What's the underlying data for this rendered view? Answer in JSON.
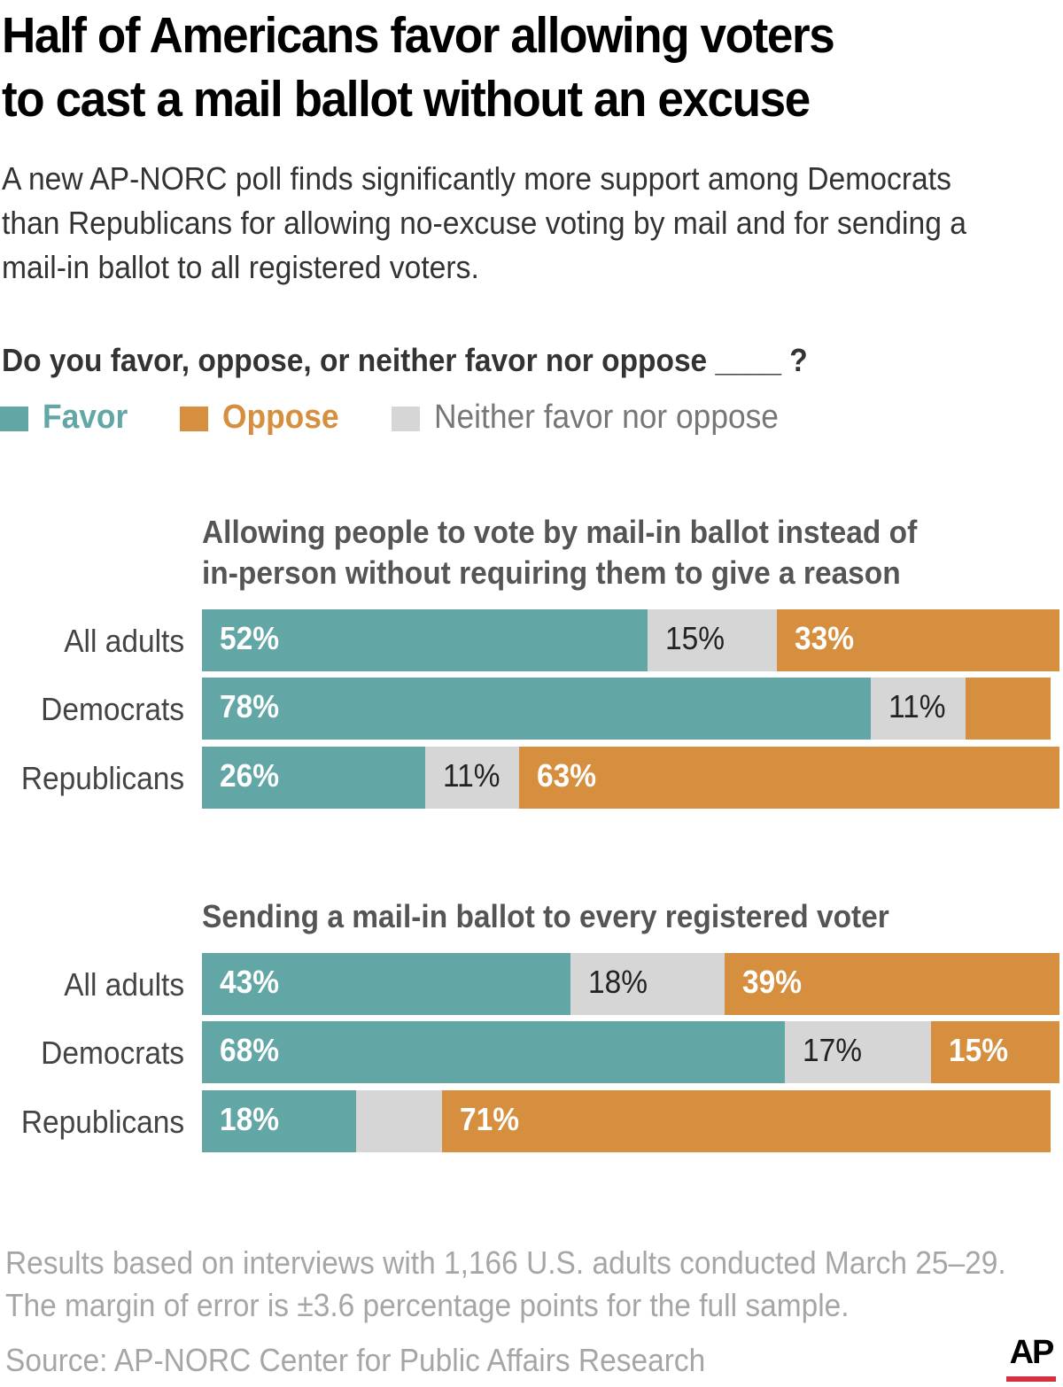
{
  "title_lines": [
    "Half of Americans favor allowing voters",
    "to cast a mail ballot without an excuse"
  ],
  "subtitle_lines": [
    "A new AP-NORC poll finds significantly more support among Democrats",
    "than Republicans for allowing no-excuse voting by mail and for sending a",
    "mail-in ballot to all registered voters."
  ],
  "question": "Do you favor, oppose, or neither favor nor oppose ____ ?",
  "legend": [
    {
      "key": "favor",
      "label": "Favor",
      "color": "#62a6a6"
    },
    {
      "key": "oppose",
      "label": "Oppose",
      "color": "#d68f3e"
    },
    {
      "key": "neither",
      "label": "Neither favor nor oppose",
      "color": "#d6d6d6"
    }
  ],
  "colors": {
    "favor": "#62a6a6",
    "oppose": "#d68f3e",
    "neither": "#d6d6d6",
    "logo_accent": "#d6303e"
  },
  "chart_data": [
    {
      "type": "bar",
      "stacked": true,
      "orientation": "horizontal",
      "title_lines": [
        "Allowing people to vote by mail-in ballot instead of",
        "in-person without requiring them to give a reason"
      ],
      "categories": [
        "All adults",
        "Democrats",
        "Republicans"
      ],
      "series": [
        {
          "name": "Favor",
          "values": [
            52,
            78,
            26
          ],
          "labels": [
            "52%",
            "78%",
            "26%"
          ]
        },
        {
          "name": "Neither favor nor oppose",
          "values": [
            15,
            11,
            11
          ],
          "labels": [
            "15%",
            "11%",
            "11%"
          ]
        },
        {
          "name": "Oppose",
          "values": [
            33,
            10,
            63
          ],
          "labels": [
            "33%",
            "",
            "63%"
          ]
        }
      ],
      "xlim": [
        0,
        100
      ]
    },
    {
      "type": "bar",
      "stacked": true,
      "orientation": "horizontal",
      "title_lines": [
        "Sending a mail-in ballot to every registered voter"
      ],
      "categories": [
        "All adults",
        "Democrats",
        "Republicans"
      ],
      "series": [
        {
          "name": "Favor",
          "values": [
            43,
            68,
            18
          ],
          "labels": [
            "43%",
            "68%",
            "18%"
          ]
        },
        {
          "name": "Neither favor nor oppose",
          "values": [
            18,
            17,
            10
          ],
          "labels": [
            "18%",
            "17%",
            ""
          ]
        },
        {
          "name": "Oppose",
          "values": [
            39,
            15,
            71
          ],
          "labels": [
            "39%",
            "15%",
            "71%"
          ]
        }
      ],
      "xlim": [
        0,
        100
      ]
    }
  ],
  "note_lines": [
    "Results based on interviews with 1,166 U.S. adults conducted March 25–29.",
    "The margin of error is ±3.6 percentage points for the full sample."
  ],
  "source": "Source: AP-NORC Center for Public Affairs Research",
  "logo_text": "AP"
}
